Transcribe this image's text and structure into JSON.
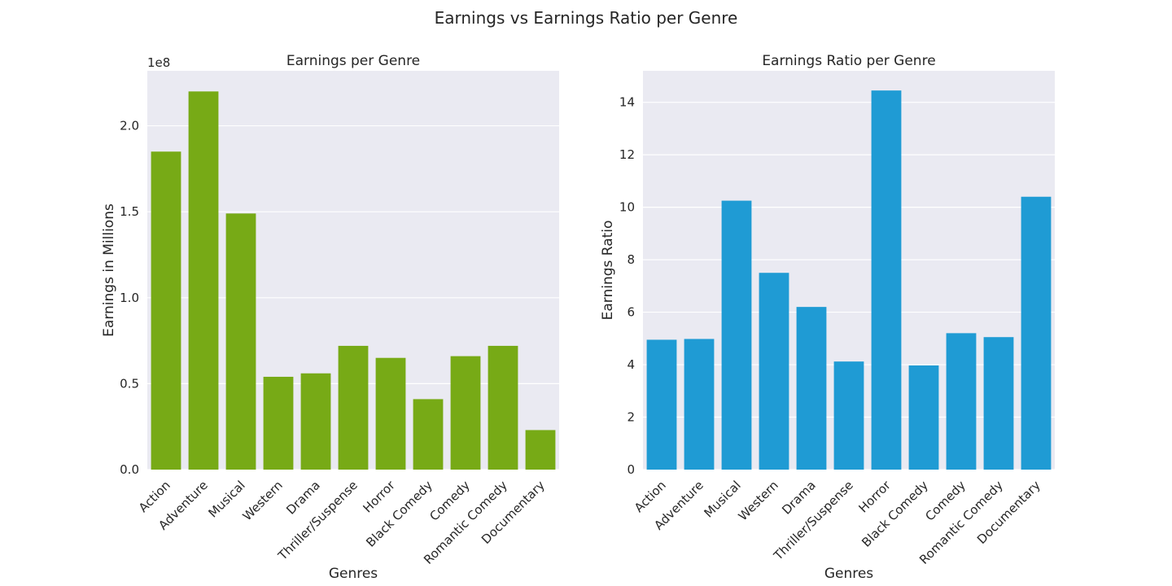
{
  "suptitle": "Earnings vs Earnings Ratio per Genre",
  "chart_data": [
    {
      "type": "bar",
      "title": "Earnings per Genre",
      "xlabel": "Genres",
      "ylabel": "Earnings in Millions",
      "offset_label": "1e8",
      "categories": [
        "Action",
        "Adventure",
        "Musical",
        "Western",
        "Drama",
        "Thriller/Suspense",
        "Horror",
        "Black Comedy",
        "Comedy",
        "Romantic Comedy",
        "Documentary"
      ],
      "values": [
        185000000,
        220000000,
        149000000,
        54000000,
        56000000,
        72000000,
        65000000,
        41000000,
        66000000,
        72000000,
        23000000
      ],
      "ylim": [
        0,
        232000000
      ],
      "yticks": [
        0,
        50000000,
        100000000,
        150000000,
        200000000
      ],
      "ytick_labels": [
        "0.0",
        "0.5",
        "1.0",
        "1.5",
        "2.0"
      ],
      "color": "#77aa16",
      "grid": true
    },
    {
      "type": "bar",
      "title": "Earnings Ratio per Genre",
      "xlabel": "Genres",
      "ylabel": "Earnings Ratio",
      "categories": [
        "Action",
        "Adventure",
        "Musical",
        "Western",
        "Drama",
        "Thriller/Suspense",
        "Horror",
        "Black Comedy",
        "Comedy",
        "Romantic Comedy",
        "Documentary"
      ],
      "values": [
        4.95,
        4.98,
        10.25,
        7.5,
        6.2,
        4.12,
        14.45,
        3.97,
        5.2,
        5.05,
        10.4
      ],
      "ylim": [
        0,
        15.2
      ],
      "yticks": [
        0,
        2,
        4,
        6,
        8,
        10,
        12,
        14
      ],
      "ytick_labels": [
        "0",
        "2",
        "4",
        "6",
        "8",
        "10",
        "12",
        "14"
      ],
      "color": "#1f9bd4",
      "grid": true
    }
  ]
}
